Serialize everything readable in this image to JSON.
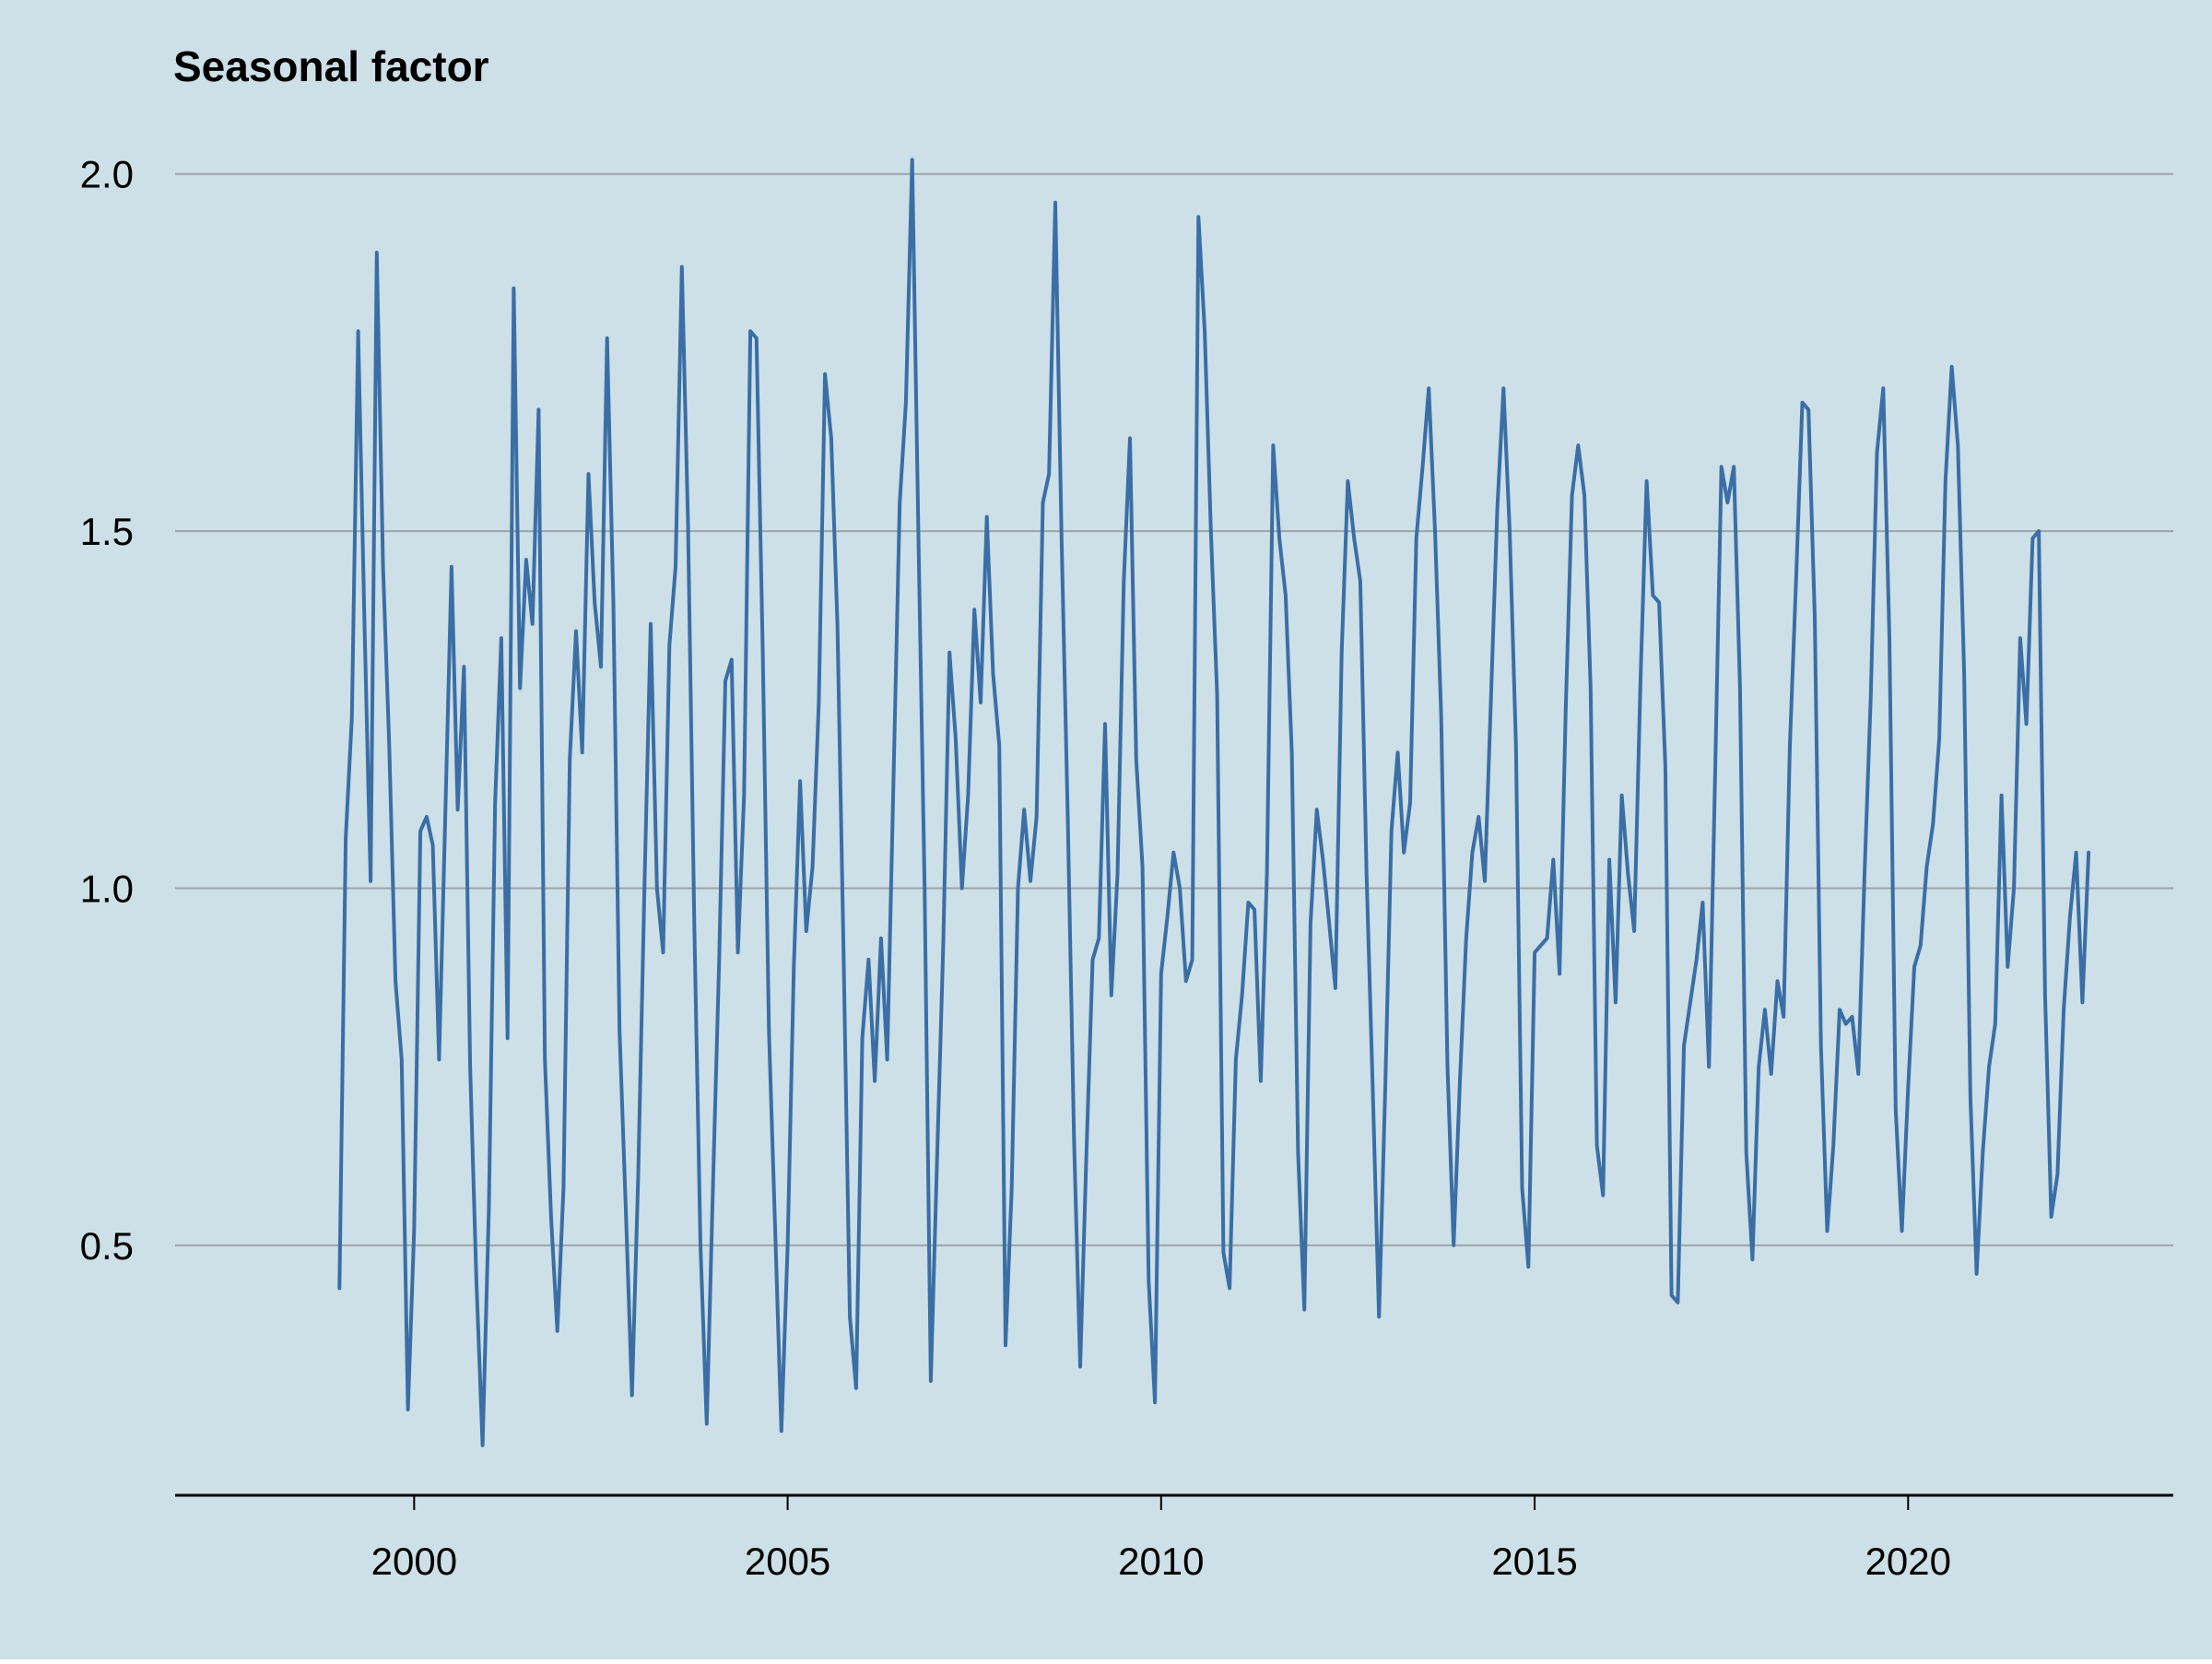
{
  "colors": {
    "background": "#cddfe7",
    "line": "#3a6ea5",
    "grid": "#9aa4aa",
    "axis": "#000000",
    "text": "#000000"
  },
  "chart_data": {
    "type": "line",
    "title": "",
    "ylabel": "Seasonal factor",
    "xlabel": "",
    "xlim": [
      1996.8,
      2023.55
    ],
    "ylim": [
      0.15,
      2.05
    ],
    "yticks": [
      0.5,
      1.0,
      1.5,
      2.0
    ],
    "ytick_labels": [
      "0.5",
      "1.0",
      "1.5",
      "2.0"
    ],
    "xticks": [
      2000,
      2005,
      2010,
      2015,
      2020
    ],
    "xtick_labels": [
      "2000",
      "2005",
      "2010",
      "2015",
      "2020"
    ],
    "grid": "horizontal",
    "legend": "none",
    "series": [
      {
        "frequency": "monthly",
        "start": "1999-01",
        "values": [
          0.44,
          1.07,
          1.24,
          1.78,
          1.38,
          1.01,
          1.89,
          1.45,
          1.2,
          0.87,
          0.76,
          0.27,
          0.52,
          1.08,
          1.1,
          1.06,
          0.76,
          1.1,
          1.45,
          1.11,
          1.31,
          0.75,
          0.45,
          0.22,
          0.55,
          1.12,
          1.35,
          0.79,
          1.84,
          1.28,
          1.46,
          1.37,
          1.67,
          0.76,
          0.54,
          0.38,
          0.58,
          1.18,
          1.36,
          1.19,
          1.58,
          1.4,
          1.31,
          1.77,
          1.4,
          0.8,
          0.55,
          0.29,
          0.6,
          1.0,
          1.37,
          1.0,
          0.91,
          1.34,
          1.45,
          1.87,
          1.51,
          0.95,
          0.5,
          0.25,
          0.58,
          0.9,
          1.29,
          1.32,
          0.91,
          1.13,
          1.78,
          1.77,
          1.33,
          0.8,
          0.52,
          0.24,
          0.5,
          0.89,
          1.15,
          0.94,
          1.03,
          1.26,
          1.72,
          1.63,
          1.37,
          0.9,
          0.4,
          0.3,
          0.79,
          0.9,
          0.73,
          0.93,
          0.76,
          1.15,
          1.54,
          1.68,
          2.02,
          1.5,
          1.0,
          0.31,
          0.62,
          0.92,
          1.33,
          1.21,
          1.0,
          1.13,
          1.39,
          1.26,
          1.52,
          1.3,
          1.2,
          0.36,
          0.58,
          1.0,
          1.11,
          1.01,
          1.1,
          1.54,
          1.58,
          1.96,
          1.49,
          1.1,
          0.65,
          0.33,
          0.63,
          0.9,
          0.93,
          1.23,
          0.85,
          1.02,
          1.43,
          1.63,
          1.18,
          1.03,
          0.45,
          0.28,
          0.88,
          0.96,
          1.05,
          1.0,
          0.87,
          0.9,
          1.94,
          1.78,
          1.5,
          1.27,
          0.49,
          0.44,
          0.76,
          0.85,
          0.98,
          0.97,
          0.73,
          1.02,
          1.62,
          1.49,
          1.41,
          1.19,
          0.63,
          0.41,
          0.95,
          1.11,
          1.04,
          0.95,
          0.86,
          1.33,
          1.57,
          1.49,
          1.43,
          1.02,
          0.72,
          0.4,
          0.72,
          1.08,
          1.19,
          1.05,
          1.12,
          1.49,
          1.59,
          1.7,
          1.5,
          1.24,
          0.75,
          0.5,
          0.73,
          0.93,
          1.05,
          1.1,
          1.01,
          1.27,
          1.53,
          1.7,
          1.5,
          1.2,
          0.58,
          0.47,
          0.91,
          0.92,
          0.93,
          1.04,
          0.88,
          1.25,
          1.55,
          1.62,
          1.55,
          1.28,
          0.64,
          0.57,
          1.04,
          0.84,
          1.13,
          1.02,
          0.94,
          1.29,
          1.57,
          1.41,
          1.4,
          1.17,
          0.43,
          0.42,
          0.78,
          0.84,
          0.9,
          0.98,
          0.75,
          1.16,
          1.59,
          1.54,
          1.59,
          1.28,
          0.63,
          0.48,
          0.75,
          0.83,
          0.74,
          0.87,
          0.82,
          1.2,
          1.43,
          1.68,
          1.67,
          1.38,
          0.78,
          0.52,
          0.64,
          0.83,
          0.81,
          0.82,
          0.74,
          1.02,
          1.27,
          1.61,
          1.7,
          1.35,
          0.69,
          0.52,
          0.72,
          0.89,
          0.92,
          1.03,
          1.09,
          1.21,
          1.57,
          1.73,
          1.62,
          1.3,
          0.71,
          0.46,
          0.63,
          0.75,
          0.81,
          1.13,
          0.89,
          1.0,
          1.35,
          1.23,
          1.49,
          1.5,
          0.85,
          0.54,
          0.6,
          0.83,
          0.96,
          1.05,
          0.84,
          1.05
        ]
      }
    ]
  }
}
